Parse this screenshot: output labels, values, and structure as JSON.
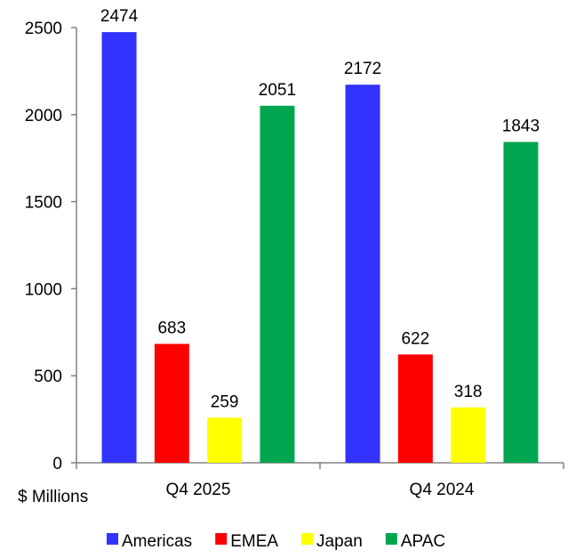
{
  "chart_data": {
    "type": "bar",
    "categories": [
      "Q4 2025",
      "Q4 2024"
    ],
    "series": [
      {
        "name": "Americas",
        "color": "#3333FF",
        "values": [
          2474,
          2172
        ]
      },
      {
        "name": "EMEA",
        "color": "#FF0000",
        "values": [
          683,
          622
        ]
      },
      {
        "name": "Japan",
        "color": "#FFFF00",
        "values": [
          259,
          318
        ]
      },
      {
        "name": "APAC",
        "color": "#00A54F",
        "values": [
          2051,
          1843
        ]
      }
    ],
    "ylim": [
      0,
      2500
    ],
    "yticks": [
      0,
      500,
      1000,
      1500,
      2000,
      2500
    ],
    "ylabel": "$ Millions",
    "grid": false,
    "legend": "bottom",
    "data_labels": true
  }
}
